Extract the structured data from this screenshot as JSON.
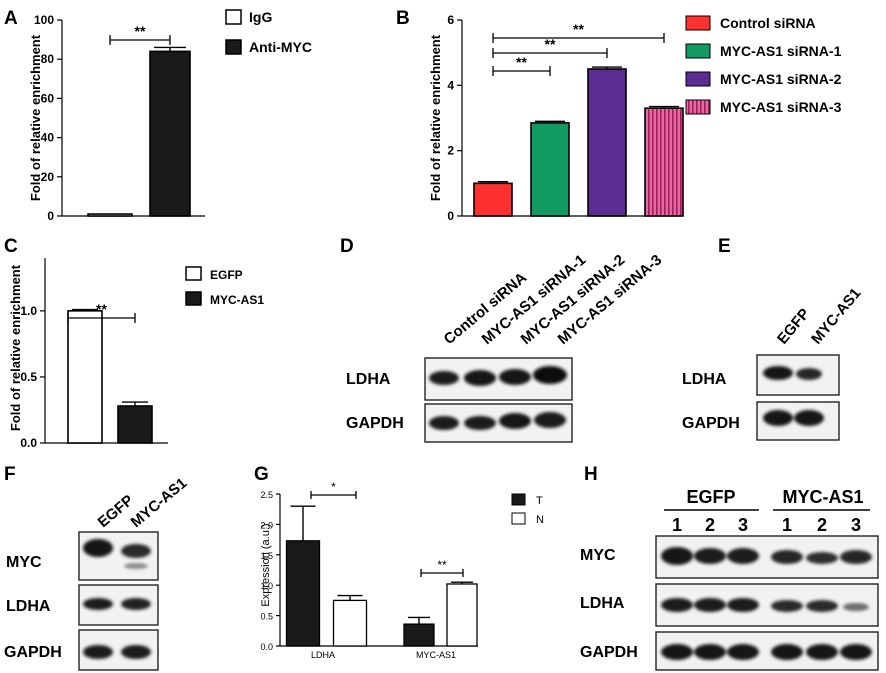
{
  "panels": {
    "A": {
      "label": "A"
    },
    "B": {
      "label": "B"
    },
    "C": {
      "label": "C"
    },
    "D": {
      "label": "D"
    },
    "E": {
      "label": "E"
    },
    "F": {
      "label": "F"
    },
    "G": {
      "label": "G"
    },
    "H": {
      "label": "H"
    }
  },
  "colors": {
    "black": "#1a1a1a",
    "control": "#ff3030",
    "sirna1": "#119a62",
    "sirna2": "#5c2d91",
    "sirna3": "#d4357a",
    "white": "#ffffff"
  },
  "chart_data": [
    {
      "panel": "A",
      "type": "bar",
      "ylabel": "Fold of relative enrichment",
      "ylim": [
        0,
        100
      ],
      "yticks": [
        "0",
        "20",
        "40",
        "60",
        "80",
        "100"
      ],
      "series": [
        {
          "name": "IgG",
          "values": [
            1
          ],
          "errors": [
            0
          ]
        },
        {
          "name": "Anti-MYC",
          "values": [
            84
          ],
          "errors": [
            2
          ]
        }
      ],
      "significance": [
        "**"
      ],
      "legend": "top-right"
    },
    {
      "panel": "B",
      "type": "bar",
      "ylabel": "Fold of relative enrichment",
      "ylim": [
        0,
        6
      ],
      "yticks": [
        "0",
        "2",
        "4",
        "6"
      ],
      "series": [
        {
          "name": "Control siRNA",
          "values": [
            1.0
          ],
          "errors": [
            0.05
          ]
        },
        {
          "name": "MYC-AS1 siRNA-1",
          "values": [
            2.85
          ],
          "errors": [
            0.05
          ]
        },
        {
          "name": "MYC-AS1 siRNA-2",
          "values": [
            4.5
          ],
          "errors": [
            0.06
          ]
        },
        {
          "name": "MYC-AS1 siRNA-3",
          "values": [
            3.3
          ],
          "errors": [
            0.05
          ]
        }
      ],
      "significance": [
        "**",
        "**",
        "**"
      ],
      "legend": "top-right"
    },
    {
      "panel": "C",
      "type": "bar",
      "ylabel": "Fold of relative enrichment",
      "ylim": [
        0,
        1.4
      ],
      "yticks": [
        "0.0",
        "0.5",
        "1.0"
      ],
      "series": [
        {
          "name": "EGFP",
          "values": [
            1.0
          ],
          "errors": [
            0.01
          ]
        },
        {
          "name": "MYC-AS1",
          "values": [
            0.28
          ],
          "errors": [
            0.03
          ]
        }
      ],
      "significance": [
        "**"
      ],
      "legend": "top-right"
    },
    {
      "panel": "G",
      "type": "bar",
      "ylabel": "Expression (a.u.)",
      "ylim": [
        0,
        2.5
      ],
      "yticks": [
        "0.0",
        "0.5",
        "1.0",
        "1.5",
        "2.0",
        "2.5"
      ],
      "categories": [
        "LDHA",
        "MYC-AS1"
      ],
      "series": [
        {
          "name": "T",
          "values": [
            1.73,
            0.36
          ],
          "errors": [
            0.57,
            0.11
          ]
        },
        {
          "name": "N",
          "values": [
            0.75,
            1.02
          ],
          "errors": [
            0.08,
            0.03
          ]
        }
      ],
      "significance": [
        "*",
        "**"
      ],
      "legend": "top-right"
    }
  ],
  "blots": {
    "D": {
      "lanes": [
        "Control siRNA",
        "MYC-AS1  siRNA-1",
        "MYC-AS1  siRNA-2",
        "MYC-AS1  siRNA-3"
      ],
      "bands": [
        "LDHA",
        "GAPDH"
      ]
    },
    "E": {
      "lanes": [
        "EGFP",
        "MYC-AS1"
      ],
      "bands": [
        "LDHA",
        "GAPDH"
      ]
    },
    "F": {
      "lanes": [
        "EGFP",
        "MYC-AS1"
      ],
      "bands": [
        "MYC",
        "LDHA",
        "GAPDH"
      ]
    },
    "H": {
      "groups": [
        "EGFP",
        "MYC-AS1"
      ],
      "lane_numbers": [
        "1",
        "2",
        "3",
        "1",
        "2",
        "3"
      ],
      "bands": [
        "MYC",
        "LDHA",
        "GAPDH"
      ]
    }
  }
}
